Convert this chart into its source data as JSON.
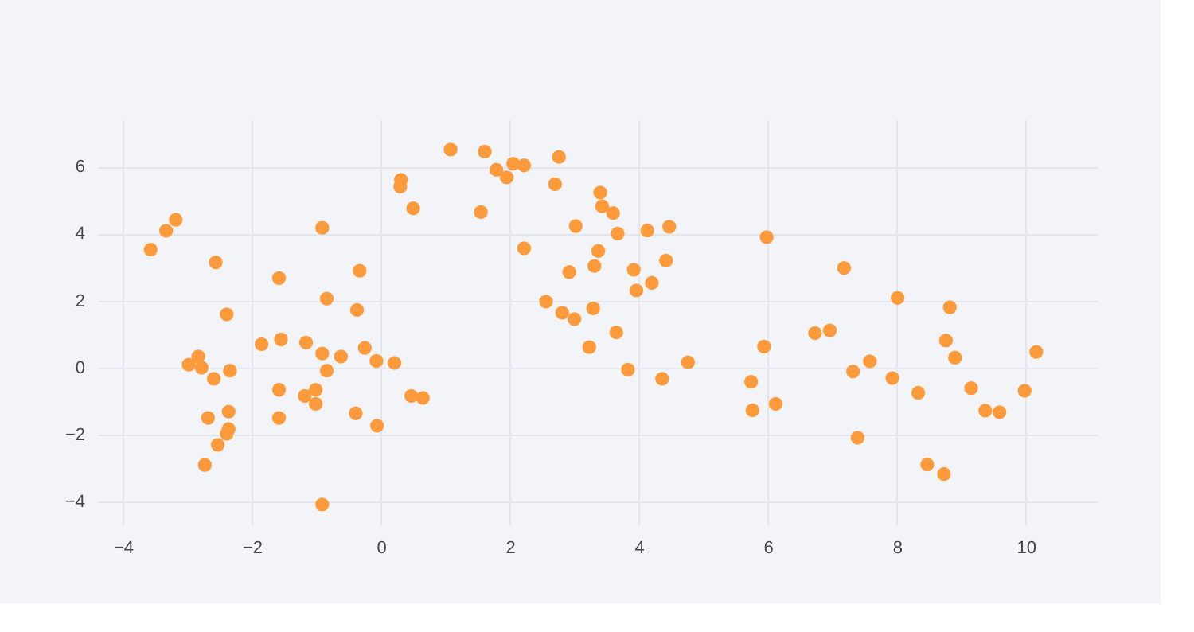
{
  "chart_data": {
    "type": "scatter",
    "color": "#fd9a3c",
    "marker": "circle",
    "grid": true,
    "xlim": [
      -4.4,
      11.1
    ],
    "xticks": [
      -4,
      -2,
      0,
      2,
      4,
      6,
      8,
      10
    ],
    "ylim": [
      -4.7,
      7.4
    ],
    "yticks": [
      -4,
      -2,
      0,
      2,
      4,
      6
    ],
    "x": [
      -3.57,
      -3.33,
      -3.18,
      -2.56,
      -2.39,
      -2.98,
      -2.83,
      -2.78,
      -2.59,
      -2.34,
      -2.68,
      -2.36,
      -2.36,
      -2.39,
      -2.53,
      -2.73,
      -1.58,
      -1.85,
      -1.55,
      -1.58,
      -1.58,
      -1.16,
      -1.18,
      -1.01,
      -1.01,
      -0.91,
      -0.84,
      -0.91,
      -0.84,
      -0.62,
      -0.91,
      -0.33,
      -0.37,
      -0.25,
      -0.07,
      -0.39,
      -0.06,
      0.21,
      0.31,
      0.3,
      0.5,
      0.47,
      0.65,
      1.08,
      1.61,
      1.79,
      2.05,
      2.22,
      1.95,
      2.76,
      2.7,
      1.55,
      3.4,
      3.43,
      3.6,
      3.02,
      3.67,
      4.13,
      4.47,
      2.22,
      3.37,
      3.31,
      2.92,
      3.92,
      4.42,
      4.2,
      3.96,
      2.56,
      2.81,
      3.0,
      3.29,
      3.65,
      3.23,
      3.83,
      4.36,
      4.76,
      5.98,
      5.94,
      5.74,
      5.76,
      6.12,
      7.18,
      6.73,
      6.96,
      7.32,
      7.58,
      7.39,
      8.01,
      7.93,
      8.33,
      8.82,
      8.76,
      8.9,
      9.15,
      9.37,
      9.59,
      9.98,
      10.16,
      8.47,
      8.73
    ],
    "values": [
      3.52,
      4.08,
      4.41,
      3.14,
      1.59,
      0.09,
      0.33,
      0,
      -0.33,
      -0.09,
      -1.5,
      -1.31,
      -1.83,
      -1.97,
      -2.3,
      -2.9,
      2.67,
      0.7,
      0.84,
      -0.66,
      -1.5,
      0.75,
      -0.84,
      -0.66,
      -1.08,
      4.17,
      2.06,
      0.42,
      -0.09,
      0.33,
      -4.08,
      2.89,
      1.72,
      0.59,
      0.2,
      -1.36,
      -1.73,
      0.14,
      5.6,
      5.4,
      4.75,
      -0.84,
      -0.9,
      6.5,
      6.44,
      5.9,
      6.08,
      6.03,
      5.67,
      6.28,
      5.47,
      4.64,
      5.22,
      4.81,
      4.61,
      4.22,
      4.0,
      4.09,
      4.2,
      3.56,
      3.48,
      3.03,
      2.85,
      2.92,
      3.19,
      2.53,
      2.3,
      1.97,
      1.64,
      1.45,
      1.77,
      1.05,
      0.61,
      -0.06,
      -0.33,
      0.16,
      3.89,
      0.63,
      -0.42,
      -1.27,
      -1.08,
      2.97,
      1.03,
      1.11,
      -0.11,
      0.19,
      -2.09,
      2.08,
      -0.31,
      -0.75,
      1.8,
      0.81,
      0.3,
      -0.61,
      -1.28,
      -1.33,
      -0.69,
      0.47,
      -2.89,
      -3.17
    ]
  }
}
